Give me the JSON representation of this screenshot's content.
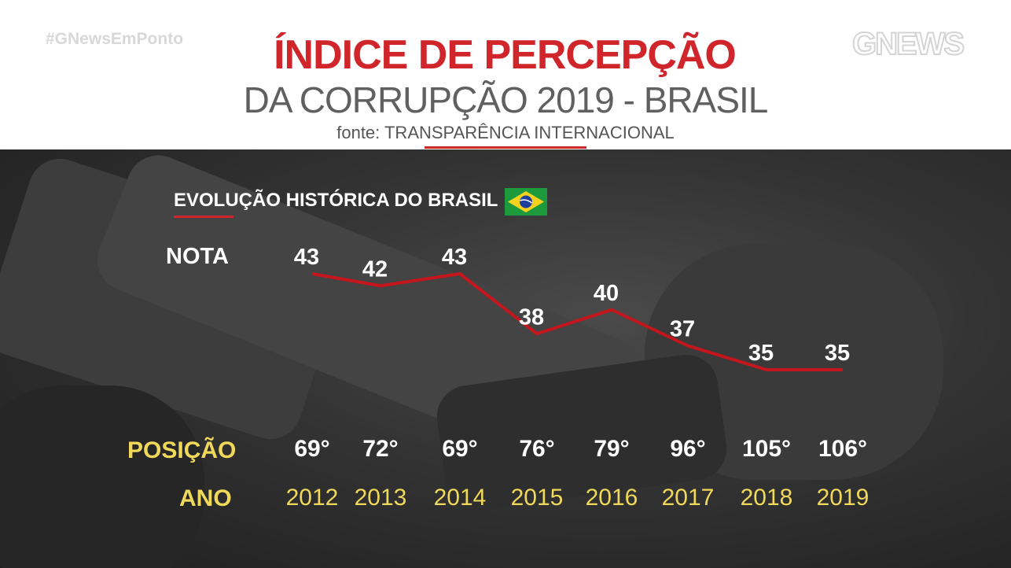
{
  "header": {
    "hashtag": "#GNewsEmPonto",
    "title": "ÍNDICE DE PERCEPÇÃO",
    "subtitle": "DA CORRUPÇÃO 2019 - BRASIL",
    "source": "fonte: TRANSPARÊNCIA INTERNACIONAL",
    "logo_text": "GNEWS"
  },
  "section_title": "EVOLUÇÃO HISTÓRICA DO BRASIL",
  "row_labels": {
    "nota": "NOTA",
    "posicao": "POSIÇÃO",
    "ano": "ANO"
  },
  "colors": {
    "accent_red": "#d0262b",
    "line_red": "#c4161c",
    "yellow": "#f0d85a",
    "white": "#ffffff"
  },
  "chart_data": {
    "type": "line",
    "x": [
      "2012",
      "2013",
      "2014",
      "2015",
      "2016",
      "2017",
      "2018",
      "2019"
    ],
    "series": [
      {
        "values": [
          43,
          42,
          43,
          38,
          40,
          37,
          35,
          35
        ]
      }
    ],
    "positions": [
      "69°",
      "72°",
      "69°",
      "76°",
      "79°",
      "96°",
      "105°",
      "106°"
    ],
    "ylim": [
      35,
      43
    ],
    "grid": false,
    "legend": "none"
  }
}
